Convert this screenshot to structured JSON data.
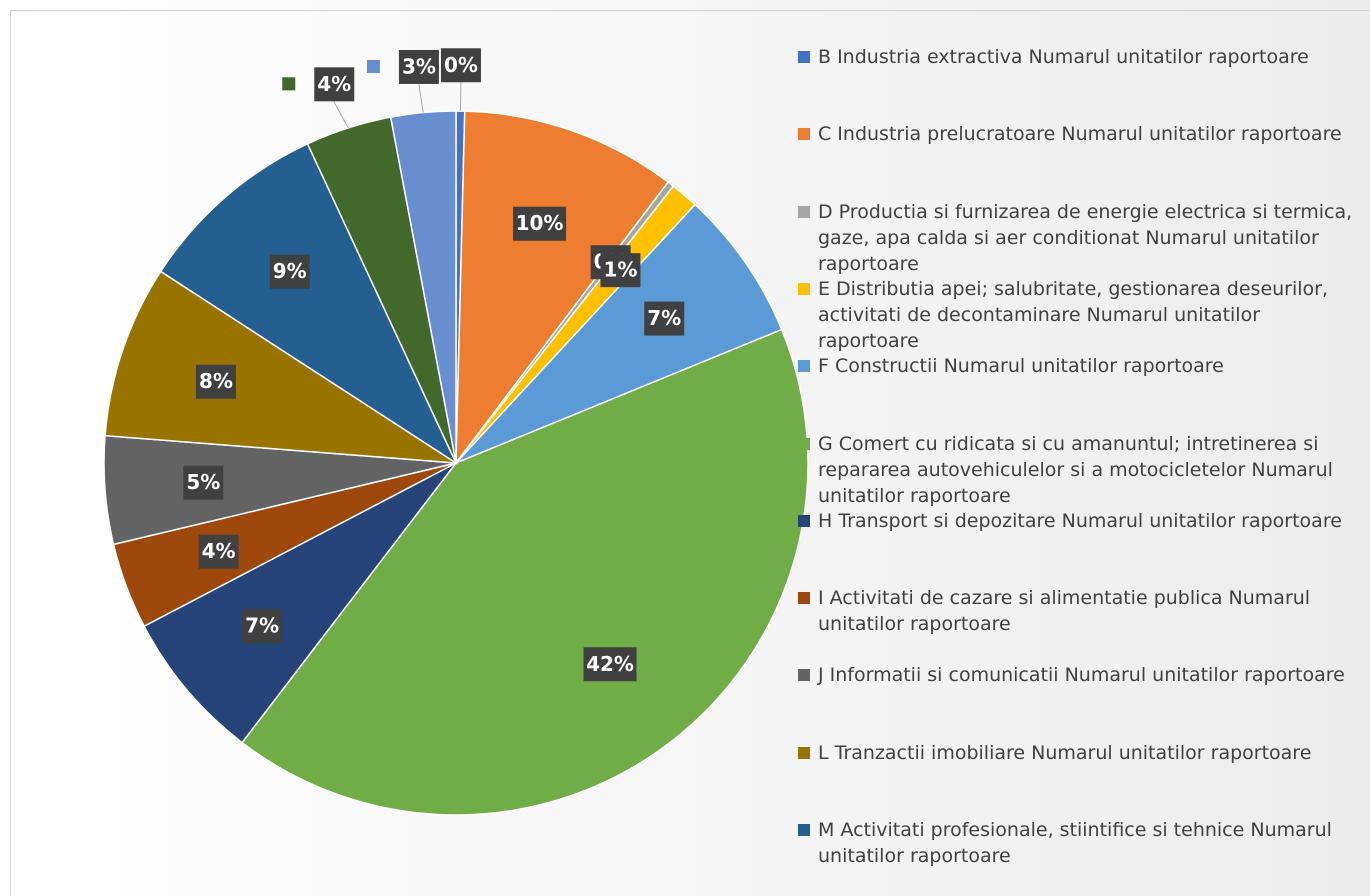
{
  "chart_data": {
    "type": "pie",
    "categories": [
      "B Industria extractiva Numarul unitatilor raportoare",
      "C Industria prelucratoare Numarul unitatilor raportoare",
      "D Productia si furnizarea de energie electrica si termica, gaze, apa calda si aer conditionat Numarul unitatilor raportoare",
      "E Distributia apei; salubritate, gestionarea deseurilor, activitati de decontaminare Numarul unitatilor raportoare",
      "F Constructii Numarul unitatilor raportoare",
      "G Comert cu ridicata si cu amanuntul; intretinerea si repararea autovehiculelor si a motocicletelor Numarul unitatilor raportoare",
      "H  Transport si depozitare Numarul unitatilor raportoare",
      "I Activitati de cazare si alimentatie publica Numarul unitatilor raportoare",
      "J Informatii si comunicatii Numarul unitatilor raportoare",
      "L Tranzactii imobiliare Numarul unitatilor raportoare",
      "M Activitati profesionale, stiintifice si tehnice Numarul unitatilor raportoare",
      null,
      null
    ],
    "values": [
      0.4,
      10,
      0.3,
      1.3,
      7,
      42,
      7,
      4,
      5,
      8,
      9,
      4,
      3
    ],
    "value_labels": [
      "0%",
      "10%",
      "0%",
      "1%",
      "7%",
      "42%",
      "7%",
      "4%",
      "5%",
      "8%",
      "9%",
      "4%",
      "3%"
    ],
    "colors": [
      "#4472c4",
      "#ed7d31",
      "#a5a5a5",
      "#ffc000",
      "#5b9bd5",
      "#70ad47",
      "#264478",
      "#9e480e",
      "#636363",
      "#997300",
      "#255e91",
      "#43682b",
      "#698ed0"
    ],
    "legend": "right"
  }
}
